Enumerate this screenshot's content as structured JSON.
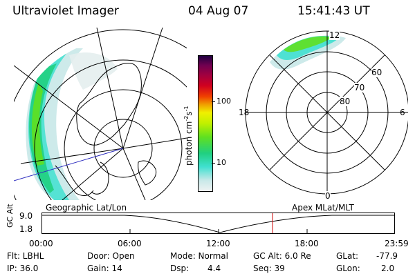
{
  "header": {
    "instrument": "Ultraviolet Imager",
    "date": "04 Aug 07",
    "time": "15:41:43 UT"
  },
  "colorbar": {
    "unit": "photon cm⁻²s⁻¹",
    "unit_base": "photon cm",
    "unit_exp1": "-2",
    "unit_s": "s",
    "unit_exp2": "-1",
    "tick_100": "100",
    "tick_10": "10",
    "colors": [
      "#e8f0f0",
      "#c8e8e8",
      "#40e0d0",
      "#20d080",
      "#60e020",
      "#c0f000",
      "#f0f000",
      "#f0a000",
      "#f04000",
      "#d00020",
      "#a00040",
      "#700050",
      "#200040"
    ]
  },
  "polar": {
    "mlt_top": "12",
    "mlt_left": "18",
    "mlt_right": "6",
    "mlt_bottom": "0",
    "lat_60": "60",
    "lat_70": "70",
    "lat_80": "80"
  },
  "timeline": {
    "left_label": "Geographic Lat/Lon",
    "right_label": "Apex MLat/MLT",
    "axis_label": "GC Alt",
    "y_max": "9.0",
    "y_min": "1.8",
    "ticks": [
      "00:00",
      "06:00",
      "12:00",
      "18:00",
      "23:59"
    ],
    "marker_color": "#cc0000"
  },
  "status": {
    "flt": "Flt: LBHL",
    "ip": "IP: 36.0",
    "door": "Door: Open",
    "gain": "Gain: 14",
    "mode": "Mode: Normal",
    "dsp_label": "Dsp:",
    "dsp_value": "4.4",
    "gcalt": "GC Alt: 6.0 Re",
    "seq": "Seq: 39",
    "glat_label": "GLat:",
    "glat_value": "-77.9",
    "glon_label": "GLon:",
    "glon_value": "2.0"
  }
}
